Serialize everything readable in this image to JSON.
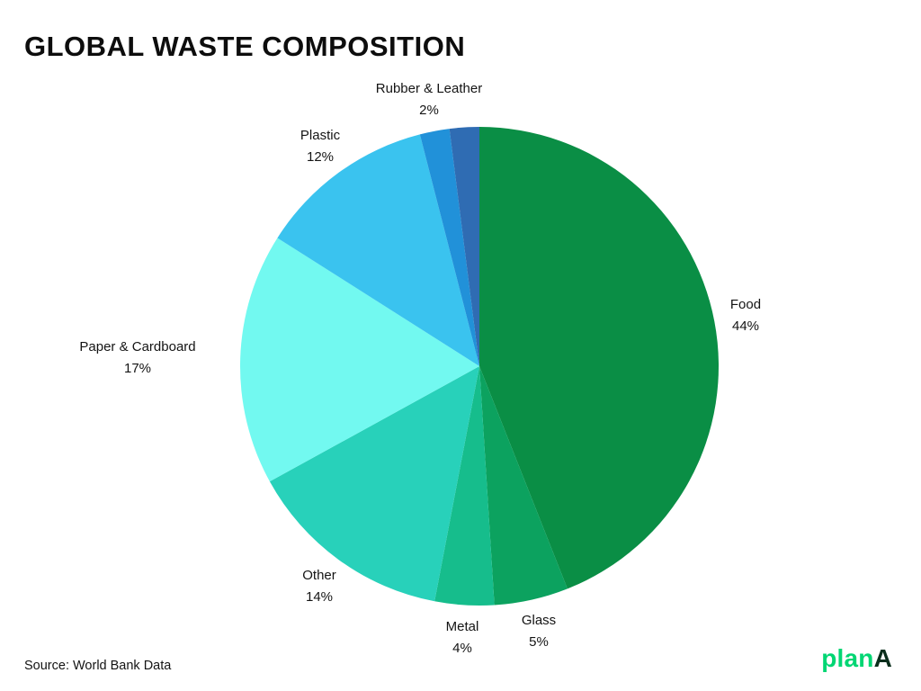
{
  "page": {
    "title": "GLOBAL WASTE COMPOSITION",
    "source": "Source: World Bank Data",
    "logo": {
      "part1": "plan",
      "part2": "A"
    }
  },
  "chart_data": {
    "type": "pie",
    "title": "GLOBAL WASTE COMPOSITION",
    "source": "Source: World Bank Data",
    "legend": "none",
    "start_angle_deg": -90,
    "direction": "clockwise",
    "slices": [
      {
        "label": "Food",
        "value": 44,
        "pct": "44%",
        "color": "#0a8e45"
      },
      {
        "label": "Glass",
        "value": 5,
        "pct": "5%",
        "color": "#0ca25f"
      },
      {
        "label": "Metal",
        "value": 4,
        "pct": "4%",
        "color": "#16bd8c"
      },
      {
        "label": "Other",
        "value": 14,
        "pct": "14%",
        "color": "#28d1ba"
      },
      {
        "label": "Paper & Cardboard",
        "value": 17,
        "pct": "17%",
        "color": "#72f9f0"
      },
      {
        "label": "Plastic",
        "value": 12,
        "pct": "12%",
        "color": "#3ac3ef"
      },
      {
        "label": "Rubber & Leather",
        "value": 2,
        "pct": "2%",
        "color": "#2191d9"
      },
      {
        "label": "",
        "value": 2,
        "pct": "2%",
        "color": "#2f6cb3"
      }
    ]
  }
}
